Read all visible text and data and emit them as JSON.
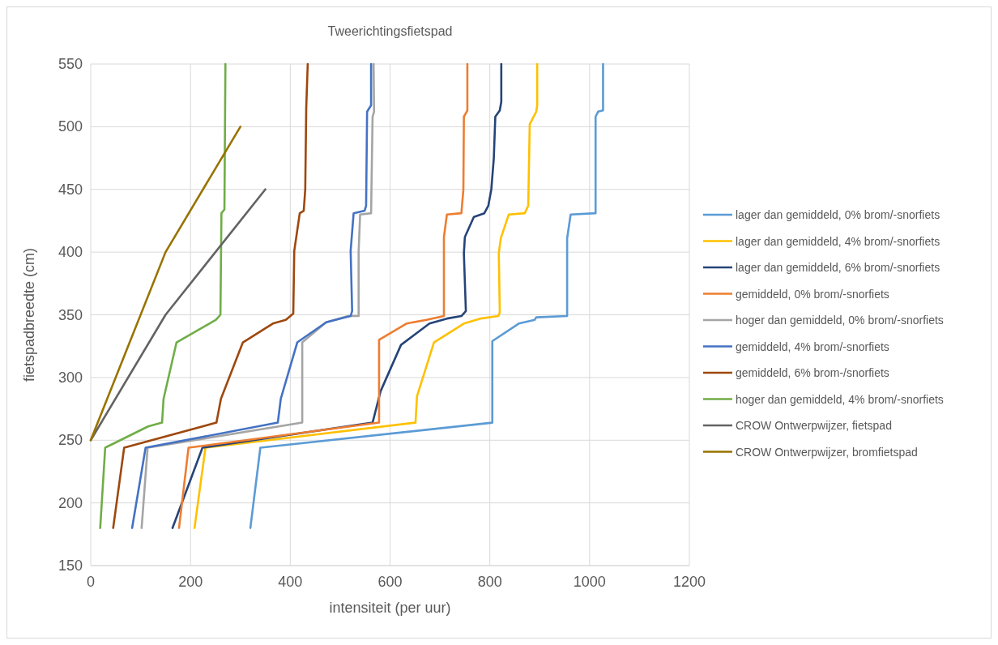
{
  "chart_data": {
    "type": "line",
    "title": "Tweerichtingsfietspad",
    "xlabel": "intensiteit (per uur)",
    "ylabel": "fietspadbreedte (cm)",
    "xlim": [
      0,
      1200
    ],
    "xticks": [
      0,
      200,
      400,
      600,
      800,
      1000,
      1200
    ],
    "ylim": [
      150,
      550
    ],
    "yticks": [
      150,
      200,
      250,
      300,
      350,
      400,
      450,
      500,
      550
    ],
    "grid": true,
    "legend": "right",
    "marker": "none",
    "line_style": "solid",
    "series": [
      {
        "name": "lager dan gemiddeld, 0% brom/-snorfiets",
        "color": "#5b9bd5",
        "x": [
          320,
          340,
          805,
          805,
          858,
          890,
          893,
          955,
          955,
          962,
          1012,
          1012,
          1017,
          1027,
          1027
        ],
        "values": [
          180,
          244,
          264,
          329,
          343,
          346,
          348,
          349,
          411,
          430,
          431,
          508,
          512,
          513,
          550
        ]
      },
      {
        "name": "lager dan gemiddeld, 4% brom/-snorfiets",
        "color": "#ffc000",
        "x": [
          208,
          230,
          651,
          654,
          688,
          748,
          781,
          817,
          820,
          818,
          822,
          838,
          870,
          877,
          880,
          893,
          895,
          895
        ],
        "values": [
          180,
          244,
          264,
          285,
          328,
          343,
          347,
          349,
          352,
          399,
          411,
          430,
          431,
          437,
          502,
          512,
          517,
          550
        ]
      },
      {
        "name": "lager dan gemiddeld, 6% brom/-snorfiets",
        "color": "#264478",
        "x": [
          164,
          224,
          565,
          581,
          622,
          679,
          714,
          743,
          752,
          748,
          750,
          768,
          789,
          797,
          803,
          808,
          811,
          820,
          823,
          823
        ],
        "values": [
          180,
          244,
          264,
          289,
          326,
          343,
          347,
          349,
          353,
          399,
          412,
          428,
          431,
          437,
          450,
          475,
          508,
          513,
          520,
          550
        ]
      },
      {
        "name": "gemiddeld, 0% brom/-snorfiets",
        "color": "#ed7d31",
        "x": [
          177,
          196,
          578,
          578,
          633,
          673,
          708,
          708,
          714,
          743,
          747,
          748,
          755,
          755
        ],
        "values": [
          180,
          244,
          264,
          330,
          343,
          346,
          349,
          412,
          430,
          431,
          450,
          508,
          513,
          550
        ]
      },
      {
        "name": "hoger dan gemiddeld, 0% brom/-snorfiets",
        "color": "#a5a5a5",
        "x": [
          102,
          114,
          424,
          424,
          472,
          516,
          537,
          537,
          540,
          562,
          565,
          568,
          567
        ],
        "values": [
          180,
          244,
          264,
          328,
          344,
          349,
          349,
          400,
          430,
          431,
          508,
          512,
          550
        ]
      },
      {
        "name": "gemiddeld, 4% brom/-snorfiets",
        "color": "#4472c4",
        "x": [
          83,
          110,
          375,
          381,
          414,
          472,
          500,
          521,
          524,
          521,
          527,
          549,
          552,
          554,
          562,
          562
        ],
        "values": [
          180,
          244,
          264,
          283,
          328,
          344,
          347,
          349,
          353,
          401,
          431,
          433,
          437,
          512,
          517,
          550
        ]
      },
      {
        "name": "gemiddeld, 6% brom-/snorfiets",
        "color": "#9e480e",
        "x": [
          45,
          67,
          252,
          261,
          305,
          365,
          391,
          406,
          408,
          419,
          427,
          430,
          432,
          435
        ],
        "values": [
          180,
          244,
          264,
          283,
          328,
          343,
          346,
          351,
          401,
          431,
          433,
          450,
          515,
          550
        ]
      },
      {
        "name": "hoger dan gemiddeld, 4% brom/-snorfiets",
        "color": "#70ad47",
        "x": [
          19,
          29,
          115,
          143,
          146,
          172,
          251,
          260,
          262,
          268,
          270
        ],
        "values": [
          180,
          244,
          261,
          264,
          283,
          328,
          346,
          350,
          431,
          434,
          550
        ]
      },
      {
        "name": "CROW Ontwerpwijzer, fietspad",
        "color": "#636363",
        "x": [
          0,
          150,
          350
        ],
        "values": [
          250,
          350,
          450
        ]
      },
      {
        "name": "CROW Ontwerpwijzer, bromfietspad",
        "color": "#997300",
        "x": [
          0,
          150,
          300
        ],
        "values": [
          250,
          400,
          500
        ]
      }
    ]
  }
}
